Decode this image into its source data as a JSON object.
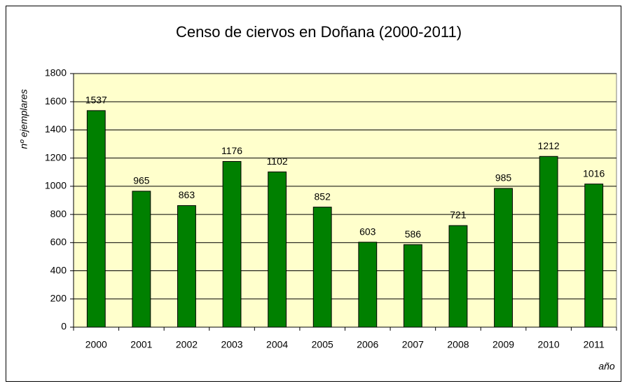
{
  "chart_data": {
    "type": "bar",
    "title": "Censo de ciervos en Doñana (2000-2011)",
    "y_label": "nº ejemplares",
    "x_label": "año",
    "categories": [
      "2000",
      "2001",
      "2002",
      "2003",
      "2004",
      "2005",
      "2006",
      "2007",
      "2008",
      "2009",
      "2010",
      "2011"
    ],
    "values": [
      1537,
      965,
      863,
      1176,
      1102,
      852,
      603,
      586,
      721,
      985,
      1212,
      1016
    ],
    "color": "#008000",
    "plot_background": "#ffffcc",
    "ylim": [
      0,
      1800
    ],
    "yticks": [
      0,
      200,
      400,
      600,
      800,
      1000,
      1200,
      1400,
      1600,
      1800
    ],
    "grid": true
  }
}
